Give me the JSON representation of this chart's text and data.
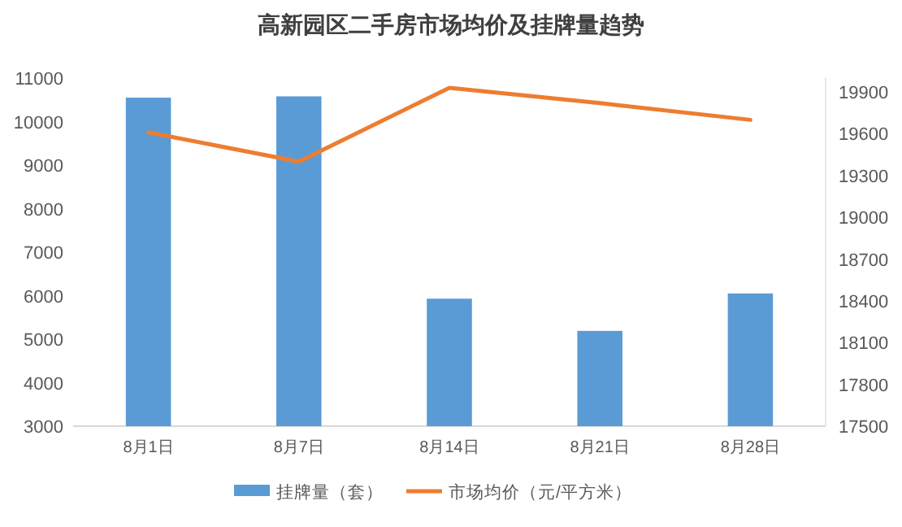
{
  "chart_data": {
    "type": "bar",
    "title": "高新园区二手房市场均价及挂牌量趋势",
    "categories": [
      "8月1日",
      "8月7日",
      "8月14日",
      "8月21日",
      "8月28日"
    ],
    "series": [
      {
        "name": "挂牌量（套）",
        "color": "#5b9bd5",
        "values": [
          10550,
          10580,
          5930,
          5190,
          6050
        ]
      },
      {
        "name": "市场均价（元/平方米）",
        "type": "line",
        "axis": "y2",
        "color": "#ed7d31",
        "values": [
          19610,
          19400,
          19930,
          19820,
          19700
        ]
      }
    ],
    "ylim": [
      3000,
      11000
    ],
    "yticks": [
      3000,
      4000,
      5000,
      6000,
      7000,
      8000,
      9000,
      10000,
      11000
    ],
    "y2lim": [
      17500,
      20000
    ],
    "y2ticks": [
      17500,
      17800,
      18100,
      18400,
      18700,
      19000,
      19300,
      19600,
      19900
    ],
    "grid": false,
    "legend": "bottom",
    "marker": "none"
  }
}
